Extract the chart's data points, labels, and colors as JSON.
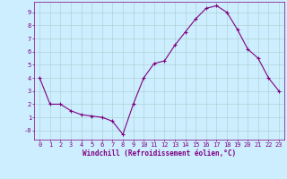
{
  "x": [
    0,
    1,
    2,
    3,
    4,
    5,
    6,
    7,
    8,
    9,
    10,
    11,
    12,
    13,
    14,
    15,
    16,
    17,
    18,
    19,
    20,
    21,
    22,
    23
  ],
  "y": [
    4.0,
    2.0,
    2.0,
    1.5,
    1.2,
    1.1,
    1.0,
    0.7,
    -0.3,
    2.0,
    4.0,
    5.1,
    5.3,
    6.5,
    7.5,
    8.5,
    9.3,
    9.5,
    9.0,
    7.7,
    6.2,
    5.5,
    4.0,
    3.0
  ],
  "line_color": "#800080",
  "marker": "+",
  "marker_size": 3,
  "marker_linewidth": 0.8,
  "bg_color": "#cceeff",
  "grid_color": "#aacccc",
  "xlabel": "Windchill (Refroidissement éolien,°C)",
  "xlabel_color": "#800080",
  "xlabel_fontsize": 5.5,
  "ytick_labels": [
    "9",
    "8",
    "7",
    "6",
    "5",
    "4",
    "3",
    "2",
    "1",
    "-0"
  ],
  "ytick_vals": [
    9,
    8,
    7,
    6,
    5,
    4,
    3,
    2,
    1,
    0
  ],
  "xtick_labels": [
    "0",
    "1",
    "2",
    "3",
    "4",
    "5",
    "6",
    "7",
    "8",
    "9",
    "10",
    "11",
    "12",
    "13",
    "14",
    "15",
    "16",
    "17",
    "18",
    "19",
    "20",
    "21",
    "22",
    "23"
  ],
  "ylim": [
    -0.7,
    9.8
  ],
  "xlim": [
    -0.5,
    23.5
  ],
  "tick_fontsize": 5.0,
  "tick_color": "#800080",
  "spine_color": "#800080",
  "line_width": 0.8
}
